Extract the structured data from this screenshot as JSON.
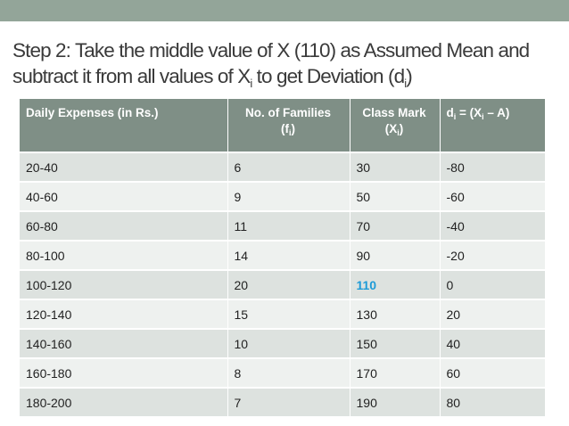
{
  "slide": {
    "title_part1": "Step 2: Take the middle value of X (110) as Assumed Mean and subtract it from all values of X",
    "title_sub_i": "i",
    "title_part2": " to get Deviation (d",
    "title_sub_i2": "i",
    "title_part3": ")"
  },
  "table": {
    "headers": {
      "col1": "Daily Expenses (in Rs.)",
      "col2_line1": "No. of Families",
      "col2_line2_open": "(f",
      "col2_sub": "i",
      "col2_line2_close": ")",
      "col3_line1": "Class Mark",
      "col3_line2_open": "(X",
      "col3_sub": "i",
      "col3_line2_close": ")",
      "col4_d": "d",
      "col4_sub1": "i",
      "col4_mid": " = (X",
      "col4_sub2": "i",
      "col4_end": " – A)"
    },
    "rows": [
      {
        "expenses": "20-40",
        "families": "6",
        "class_mark": "30",
        "deviation": "-80"
      },
      {
        "expenses": "40-60",
        "families": "9",
        "class_mark": "50",
        "deviation": "-60"
      },
      {
        "expenses": "60-80",
        "families": "11",
        "class_mark": "70",
        "deviation": "-40"
      },
      {
        "expenses": "80-100",
        "families": "14",
        "class_mark": "90",
        "deviation": "-20"
      },
      {
        "expenses": "100-120",
        "families": "20",
        "class_mark": "110",
        "deviation": "0"
      },
      {
        "expenses": "120-140",
        "families": "15",
        "class_mark": "130",
        "deviation": "20"
      },
      {
        "expenses": "140-160",
        "families": "10",
        "class_mark": "150",
        "deviation": "40"
      },
      {
        "expenses": "160-180",
        "families": "8",
        "class_mark": "170",
        "deviation": "60"
      },
      {
        "expenses": "180-200",
        "families": "7",
        "class_mark": "190",
        "deviation": "80"
      }
    ],
    "highlight_row_index": 4,
    "highlight_color": "#1e9bd7"
  },
  "colors": {
    "top_band": "#93a599",
    "header_bg": "#7f8f86",
    "row_odd": "#dde2df",
    "row_even": "#eef1ef"
  }
}
